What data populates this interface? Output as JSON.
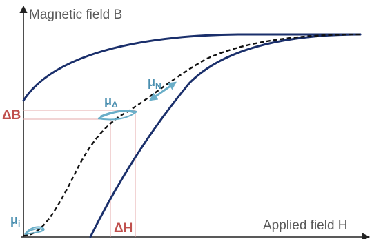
{
  "axes": {
    "y_label": "Magnetic field B",
    "x_label": "Applied field H"
  },
  "annotations": {
    "delta_b": "ΔB",
    "delta_h": "ΔH",
    "mu_initial": {
      "base": "μ",
      "sub": "i"
    },
    "mu_delta": {
      "base": "μ",
      "sub": "Δ"
    },
    "mu_normal": {
      "base": "μ",
      "sub": "N"
    }
  },
  "colors": {
    "loop": "#1a2f6b",
    "virgin_curve": "#111111",
    "axis": "#222222",
    "axis_label": "#595959",
    "delta_label": "#c0504d",
    "guide_line": "#e6a8a8",
    "mu_arrow": "#6aaec8",
    "mu_label": "#4a8fb0"
  }
}
